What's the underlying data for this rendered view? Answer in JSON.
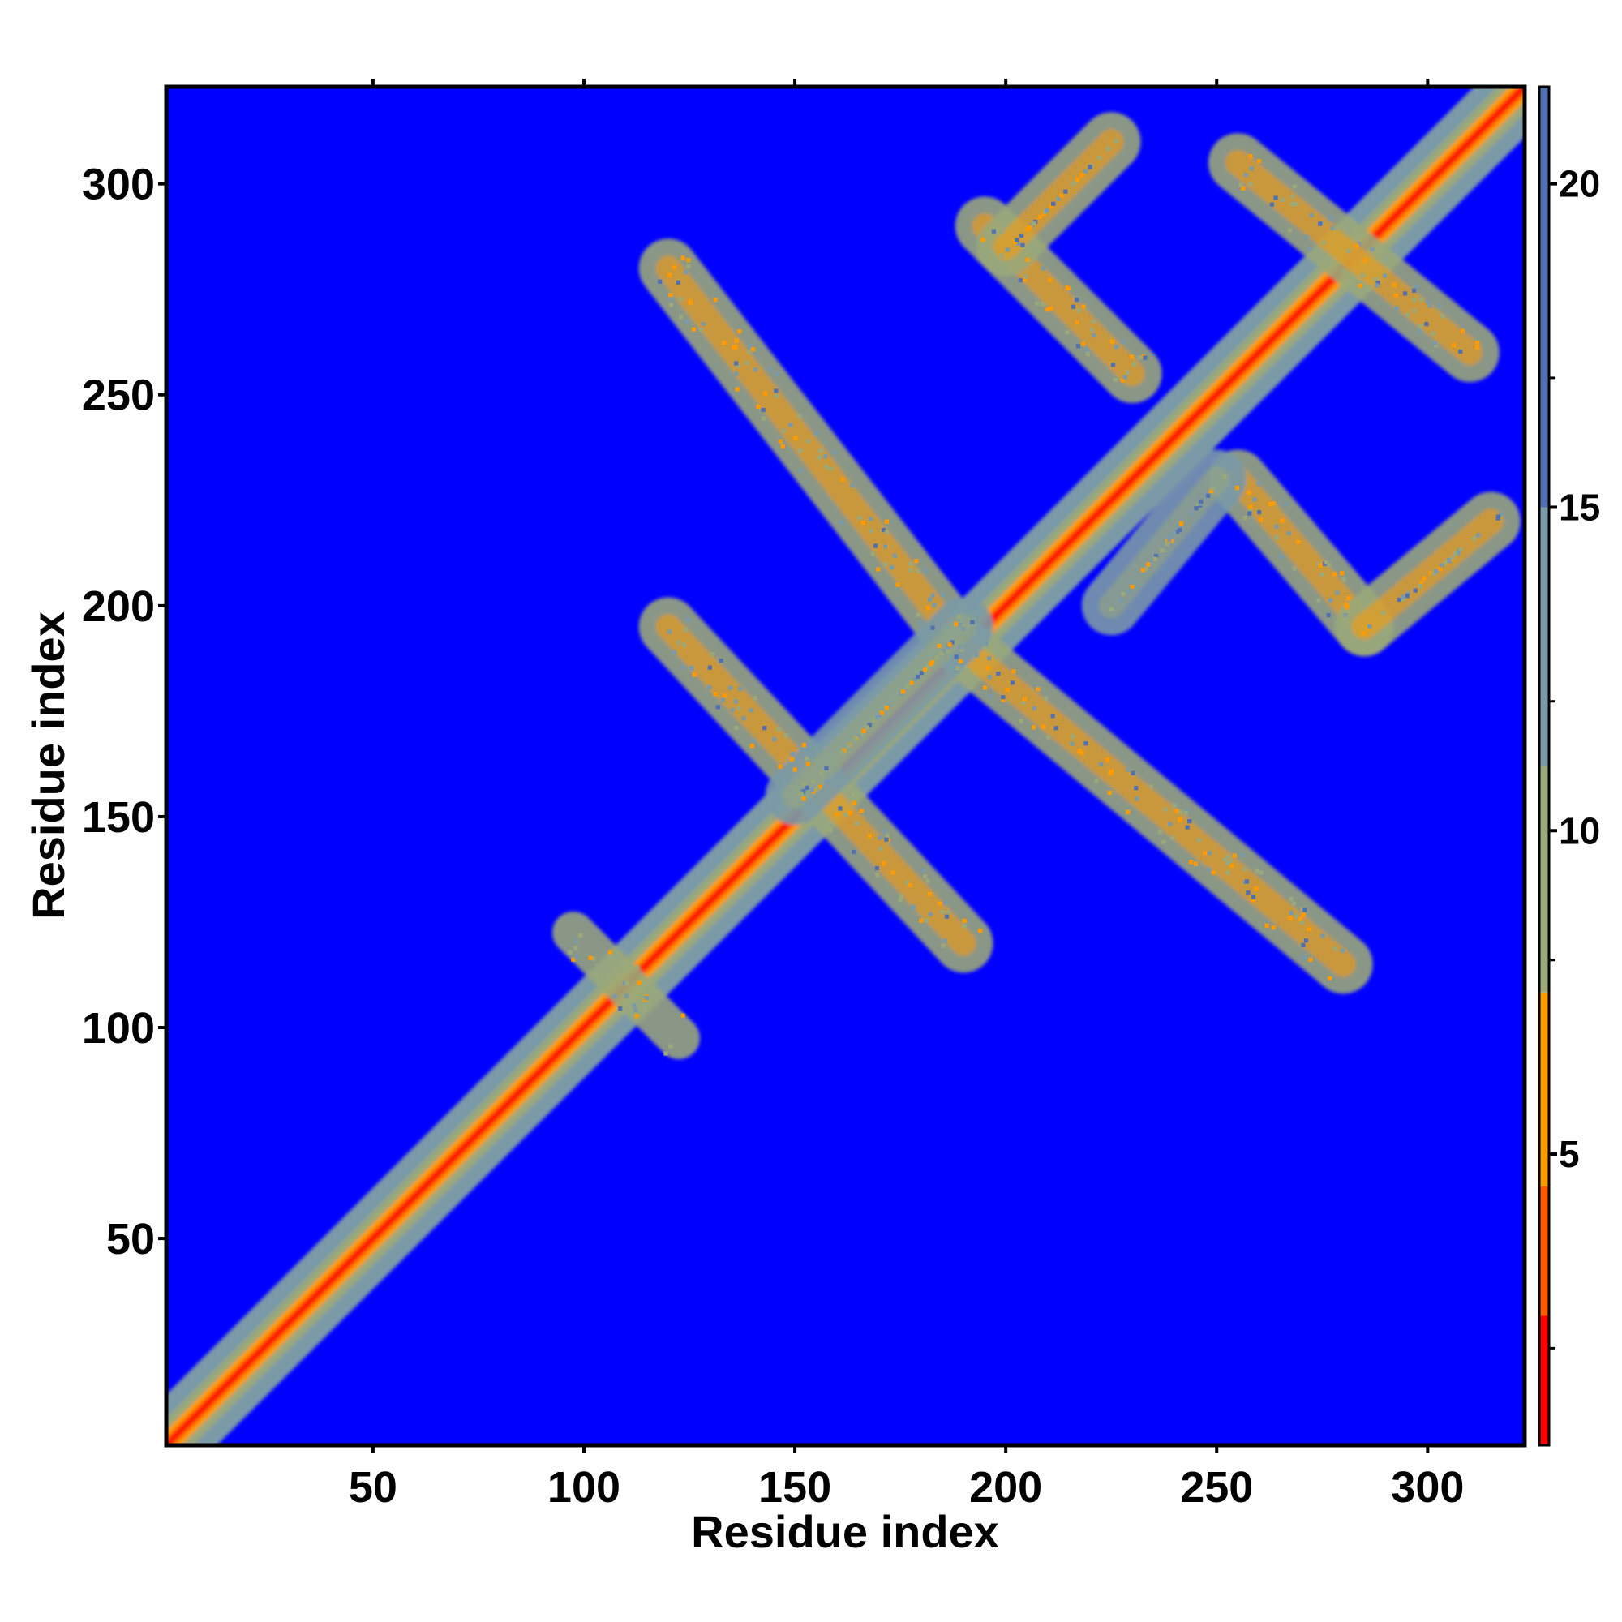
{
  "chart_data": {
    "type": "heatmap",
    "title": "",
    "xlabel": "Residue index",
    "ylabel": "Residue index",
    "xlim": [
      1,
      323
    ],
    "ylim": [
      1,
      323
    ],
    "x_ticks": [
      50,
      100,
      150,
      200,
      250,
      300
    ],
    "y_ticks": [
      50,
      100,
      150,
      200,
      250,
      300
    ],
    "grid": false,
    "legend": "none",
    "colorbar": {
      "position": "right",
      "range": [
        0.5,
        21.5
      ],
      "ticks": [
        5,
        10,
        15,
        20
      ],
      "colors": [
        "#ff0000",
        "#ff5a00",
        "#ff9a00",
        "#9aa87a",
        "#7a9aa8",
        "#5070b0"
      ],
      "background_color": "#0000ff"
    },
    "values": {
      "diagonal": "distance ~1-4 along the main diagonal (red), widening to ~8-12 (green/grey) within about 8 residues",
      "bands": [
        {
          "type": "anti-parallel",
          "from_x": 120,
          "from_y": 280,
          "to_x": 190,
          "to_y": 190,
          "value": 9
        },
        {
          "type": "anti-parallel",
          "from_x": 190,
          "from_y": 190,
          "to_x": 280,
          "to_y": 115,
          "value": 9
        },
        {
          "type": "anti-parallel",
          "from_x": 120,
          "from_y": 195,
          "to_x": 190,
          "to_y": 120,
          "value": 9
        },
        {
          "type": "anti-parallel",
          "from_x": 195,
          "from_y": 290,
          "to_x": 230,
          "to_y": 255,
          "value": 9
        },
        {
          "type": "anti-parallel",
          "from_x": 255,
          "from_y": 305,
          "to_x": 310,
          "to_y": 260,
          "value": 9
        },
        {
          "type": "anti-parallel",
          "from_x": 255,
          "from_y": 230,
          "to_x": 285,
          "to_y": 195,
          "value": 9
        },
        {
          "type": "parallel",
          "from_x": 200,
          "from_y": 285,
          "to_x": 225,
          "to_y": 310,
          "value": 9
        },
        {
          "type": "parallel",
          "from_x": 285,
          "from_y": 195,
          "to_x": 315,
          "to_y": 220,
          "value": 9
        },
        {
          "type": "parallel",
          "from_x": 150,
          "from_y": 155,
          "to_x": 190,
          "to_y": 195,
          "value": 11
        },
        {
          "type": "parallel",
          "from_x": 225,
          "from_y": 200,
          "to_x": 250,
          "to_y": 230,
          "value": 11
        },
        {
          "type": "cross",
          "center_x": 110,
          "center_y": 110,
          "size": 25,
          "value": 10
        }
      ]
    }
  }
}
